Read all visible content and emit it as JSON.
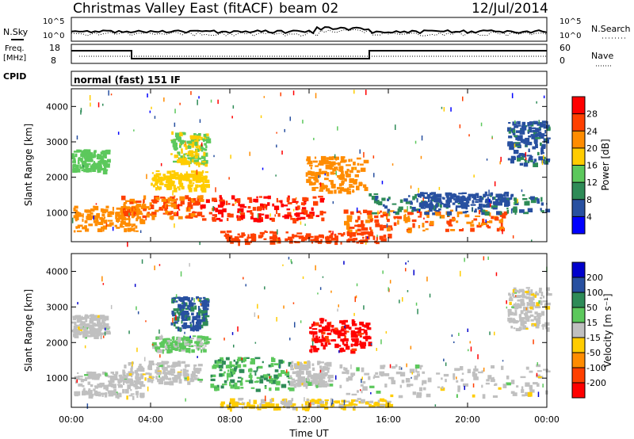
{
  "header": {
    "title": "Christmas Valley East (fitACF)",
    "beam": "beam 02",
    "date": "12/Jul/2014"
  },
  "status_panels": {
    "nsky_label": "N.Sky",
    "nsky_ticks": [
      "10^5",
      "10^0"
    ],
    "nsearch_label": "N.Search",
    "nsearch_ticks": [
      "10^5",
      "10^0"
    ],
    "freq_label": "Freq.",
    "freq_unit": "[MHz]",
    "freq_ticks": [
      "18",
      "8"
    ],
    "nave_label": "Nave",
    "nave_ticks": [
      "60",
      "0"
    ],
    "cpid_label": "CPID",
    "cpid_value": "normal (fast) 151 IF"
  },
  "colors": {
    "power_scale": [
      "#0000ff",
      "#2850a0",
      "#2e8b57",
      "#5cc85c",
      "#ffcc00",
      "#ff8c00",
      "#ff4000",
      "#ff0000"
    ],
    "velocity_scale": [
      "#ff0000",
      "#ff4000",
      "#ff8c00",
      "#ffcc00",
      "#c0c0c0",
      "#5cc85c",
      "#2e8b57",
      "#2850a0",
      "#0000cc"
    ]
  },
  "chart_data": [
    {
      "type": "heatmap",
      "name": "power",
      "ylabel": "Slant Range [km]",
      "xlim": [
        "00:00",
        "24:00"
      ],
      "ylim": [
        180,
        4500
      ],
      "y_ticks": [
        "1000",
        "2000",
        "3000",
        "4000"
      ],
      "x_ticks": [
        "00:00",
        "04:00",
        "08:00",
        "12:00",
        "16:00",
        "20:00",
        "00:00"
      ],
      "colorbar": {
        "label": "Power [dB]",
        "ticks": [
          "28",
          "24",
          "20",
          "16",
          "12",
          "8",
          "4"
        ],
        "range": [
          0,
          32
        ]
      },
      "patches": [
        {
          "t0": 0.1,
          "t1": 3.5,
          "r0": 500,
          "r1": 1200,
          "v": 22
        },
        {
          "t0": 2.5,
          "t1": 6.5,
          "r0": 900,
          "r1": 1500,
          "v": 24
        },
        {
          "t0": 6.5,
          "t1": 12.8,
          "r0": 800,
          "r1": 1500,
          "v": 28
        },
        {
          "t0": 4.0,
          "t1": 6.8,
          "r0": 1700,
          "r1": 2200,
          "v": 18
        },
        {
          "t0": 0.0,
          "t1": 1.8,
          "r0": 2200,
          "r1": 2800,
          "v": 14
        },
        {
          "t0": 5.0,
          "t1": 6.8,
          "r0": 2400,
          "r1": 3300,
          "v": 16
        },
        {
          "t0": 11.8,
          "t1": 14.8,
          "r0": 1600,
          "r1": 2600,
          "v": 22
        },
        {
          "t0": 13.5,
          "t1": 22.0,
          "r0": 500,
          "r1": 1100,
          "v": 24
        },
        {
          "t0": 15.0,
          "t1": 24.0,
          "r0": 1000,
          "r1": 1550,
          "v": 8
        },
        {
          "t0": 7.5,
          "t1": 16.0,
          "r0": 180,
          "r1": 500,
          "v": 26
        },
        {
          "t0": 22.0,
          "t1": 24.0,
          "r0": 2400,
          "r1": 3600,
          "v": 7
        },
        {
          "t0": 17.5,
          "t1": 22.0,
          "r0": 1200,
          "r1": 1600,
          "v": 6
        }
      ]
    },
    {
      "type": "heatmap",
      "name": "velocity",
      "ylabel": "Slant Range [km]",
      "xlabel": "Time UT",
      "xlim": [
        "00:00",
        "24:00"
      ],
      "ylim": [
        180,
        4500
      ],
      "y_ticks": [
        "1000",
        "2000",
        "3000",
        "4000"
      ],
      "x_ticks": [
        "00:00",
        "04:00",
        "08:00",
        "12:00",
        "16:00",
        "20:00",
        "00:00"
      ],
      "colorbar": {
        "label": "Velocity [m s⁻¹]",
        "ticks": [
          "200",
          "100",
          "50",
          "15",
          "-15",
          "-50",
          "-100",
          "-200"
        ],
        "range": [
          -250,
          250
        ]
      },
      "patches": [
        {
          "t0": 0.1,
          "t1": 3.5,
          "r0": 500,
          "r1": 1200,
          "v": 0
        },
        {
          "t0": 2.5,
          "t1": 6.5,
          "r0": 900,
          "r1": 1500,
          "v": 0
        },
        {
          "t0": 7.0,
          "t1": 11.0,
          "r0": 700,
          "r1": 1600,
          "v": 80
        },
        {
          "t0": 11.0,
          "t1": 13.0,
          "r0": 800,
          "r1": 1500,
          "v": 0
        },
        {
          "t0": 12.0,
          "t1": 15.0,
          "r0": 1800,
          "r1": 2700,
          "v": -220
        },
        {
          "t0": 13.5,
          "t1": 24.0,
          "r0": 500,
          "r1": 1400,
          "v": 0
        },
        {
          "t0": 0.0,
          "t1": 1.8,
          "r0": 2200,
          "r1": 2800,
          "v": 0
        },
        {
          "t0": 4.0,
          "t1": 6.8,
          "r0": 1800,
          "r1": 2200,
          "v": 40
        },
        {
          "t0": 5.0,
          "t1": 6.8,
          "r0": 2400,
          "r1": 3300,
          "v": 150
        },
        {
          "t0": 7.5,
          "t1": 16.0,
          "r0": 180,
          "r1": 450,
          "v": -40
        },
        {
          "t0": 22.0,
          "t1": 24.0,
          "r0": 2400,
          "r1": 3600,
          "v": 0
        }
      ]
    }
  ]
}
